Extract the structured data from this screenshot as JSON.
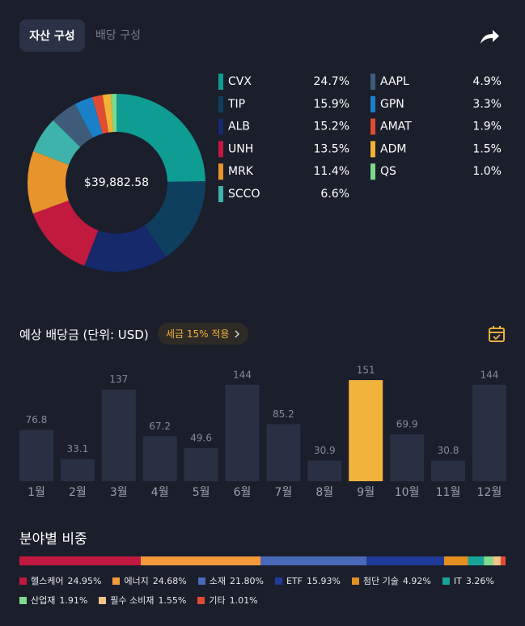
{
  "tabs": [
    "자산 구성",
    "배당 구성"
  ],
  "chart_data": [
    {
      "type": "pie",
      "center_label": "$39,882.58",
      "categories": [
        "CVX",
        "TIP",
        "ALB",
        "UNH",
        "MRK",
        "SCCO",
        "AAPL",
        "GPN",
        "AMAT",
        "ADM",
        "QS"
      ],
      "values": [
        24.7,
        15.9,
        15.2,
        13.5,
        11.4,
        6.6,
        4.9,
        3.3,
        1.9,
        1.5,
        1.0
      ],
      "value_labels": [
        "24.7%",
        "15.9%",
        "15.2%",
        "13.5%",
        "11.4%",
        "6.6%",
        "4.9%",
        "3.3%",
        "1.9%",
        "1.5%",
        "1.0%"
      ],
      "colors": [
        "#0f9c93",
        "#0e3f5f",
        "#15296b",
        "#c2193f",
        "#e5952b",
        "#3db3ab",
        "#3e5c79",
        "#1a80c8",
        "#e14b33",
        "#f2b234",
        "#7ad98b"
      ]
    },
    {
      "type": "bar",
      "title": "예상 배당금 (단위: USD)",
      "badge": "세금 15% 적용",
      "categories": [
        "1월",
        "2월",
        "3월",
        "4월",
        "5월",
        "6월",
        "7월",
        "8월",
        "9월",
        "10월",
        "11월",
        "12월"
      ],
      "values": [
        76.8,
        33.1,
        137,
        67.2,
        49.6,
        144,
        85.2,
        30.9,
        151,
        69.9,
        30.8,
        144
      ],
      "colors": [
        "#2a3043",
        "#2a3043",
        "#2a3043",
        "#2a3043",
        "#2a3043",
        "#2a3043",
        "#2a3043",
        "#2a3043",
        "#f2b33d",
        "#2a3043",
        "#2a3043",
        "#2a3043"
      ]
    },
    {
      "type": "stacked-bar",
      "title": "분야별 비중",
      "categories": [
        "헬스케어",
        "에너지",
        "소재",
        "ETF",
        "첨단 기술",
        "IT",
        "산업재",
        "필수 소비재",
        "기타"
      ],
      "values": [
        24.95,
        24.68,
        21.8,
        15.93,
        4.92,
        3.26,
        1.91,
        1.55,
        1.01
      ],
      "value_labels": [
        "24.95%",
        "24.68%",
        "21.80%",
        "15.93%",
        "4.92%",
        "3.26%",
        "1.91%",
        "1.55%",
        "1.01%"
      ],
      "colors": [
        "#c1183f",
        "#f59a3a",
        "#4a68b8",
        "#1f3a99",
        "#e39020",
        "#17a497",
        "#7fdc8c",
        "#f5c48a",
        "#e34a33"
      ]
    }
  ]
}
